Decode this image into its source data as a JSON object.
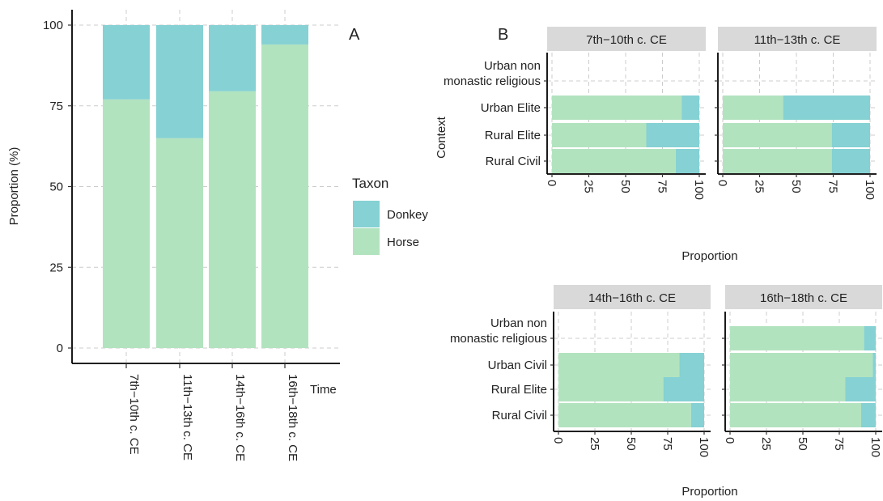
{
  "colors": {
    "donkey": "#85D1D3",
    "horse": "#B2E3BF",
    "strip": "#D9D9D9",
    "grid": "#CCCCCC"
  },
  "panel_a": {
    "tag": "A",
    "ylabel": "Proportion (%)",
    "xlabel": "Time",
    "yticks": [
      "0",
      "25",
      "50",
      "75",
      "100"
    ],
    "legend": {
      "title": "Taxon",
      "items": [
        "Donkey",
        "Horse"
      ]
    }
  },
  "panel_b": {
    "tag": "B",
    "xlabel_top": "Proportion",
    "xlabel_bottom": "Proportion",
    "ylabel": "Context",
    "xticks": [
      "0",
      "25",
      "50",
      "75",
      "100"
    ],
    "top_contexts": [
      "Urban non monastic religious",
      "Urban Elite",
      "Rural Elite",
      "Rural Civil"
    ],
    "bottom_contexts": [
      "Urban non monastic religious",
      "Urban Civil",
      "Rural Elite",
      "Rural Civil"
    ]
  },
  "chart_data": [
    {
      "type": "bar",
      "stacked": true,
      "categories": [
        "7th−10th c. CE",
        "11th−13th c. CE",
        "14th−16th c. CE",
        "16th−18th c. CE"
      ],
      "series": [
        {
          "name": "Horse",
          "values": [
            77,
            65,
            79.5,
            94
          ]
        },
        {
          "name": "Donkey",
          "values": [
            23,
            35,
            20.5,
            6
          ]
        }
      ],
      "xlabel": "Time",
      "ylabel": "Proportion (%)",
      "ylim": [
        0,
        100
      ],
      "legend": "right",
      "grid": true
    },
    {
      "type": "bar",
      "orientation": "horizontal",
      "stacked": true,
      "facets": [
        {
          "title": "7th−10th c. CE",
          "categories": [
            "Urban Elite",
            "Rural Elite",
            "Rural Civil"
          ],
          "horse": [
            88,
            64,
            84
          ],
          "donkey": [
            12,
            36,
            16
          ]
        },
        {
          "title": "11th−13th c. CE",
          "categories": [
            "Urban Elite",
            "Rural Elite",
            "Rural Civil"
          ],
          "horse": [
            41,
            74,
            74
          ],
          "donkey": [
            59,
            26,
            26
          ]
        },
        {
          "title": "14th−16th c. CE",
          "categories": [
            "Urban Civil",
            "Rural Elite",
            "Rural Civil"
          ],
          "horse": [
            83,
            72,
            91
          ],
          "donkey": [
            17,
            28,
            9
          ]
        },
        {
          "title": "16th−18th c. CE",
          "categories": [
            "Urban non monastic religious",
            "Urban Civil",
            "Rural Elite",
            "Rural Civil"
          ],
          "horse": [
            92,
            98,
            79,
            90
          ],
          "donkey": [
            8,
            2,
            21,
            10
          ]
        }
      ],
      "xlabel": "Proportion",
      "ylabel": "Context",
      "xlim": [
        0,
        100
      ],
      "grid": true
    }
  ]
}
